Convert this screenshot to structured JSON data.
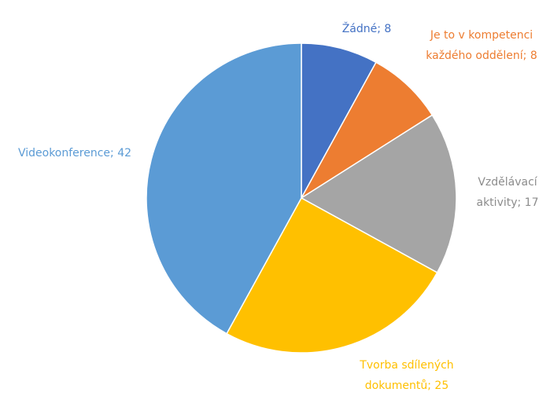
{
  "chart_data": {
    "type": "pie",
    "values": [
      8,
      8,
      17,
      25,
      42
    ],
    "value_labels": [
      "Žádné; 8",
      "Je to v kompetenci každého oddělení; 8",
      "Vzdělávací aktivity; 17",
      "Tvorba sdílených dokumentů; 25",
      "Videokonference; 42"
    ],
    "colors": [
      "#4472c4",
      "#ed7d31",
      "#a5a5a5",
      "#ffc000",
      "#5b9bd5"
    ]
  }
}
